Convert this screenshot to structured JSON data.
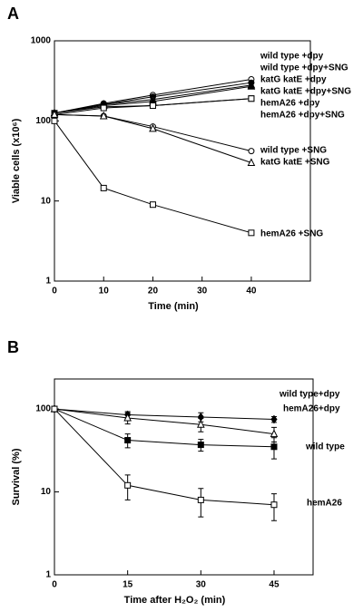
{
  "chart_data": [
    {
      "type": "line",
      "panel": "A",
      "log_y": true,
      "ylabel": "Viable cells (x10⁶)",
      "xlabel": "Time (min)",
      "xlim": [
        0,
        52
      ],
      "xticks": [
        0,
        10,
        20,
        30,
        40
      ],
      "ylim": [
        1,
        1000
      ],
      "yticks": [
        1,
        10,
        100,
        1000
      ],
      "x": [
        0,
        10,
        20,
        40
      ],
      "series": [
        {
          "name": "wild type +dpy",
          "color": "#000000",
          "marker": "circle",
          "filled": false,
          "values": [
            125,
            165,
            210,
            330
          ]
        },
        {
          "name": "wild type +dpy+SNG",
          "color": "#000000",
          "marker": "circle",
          "filled": true,
          "values": [
            125,
            160,
            200,
            300
          ]
        },
        {
          "name": "katG katE +dpy",
          "color": "#000000",
          "marker": "triangle",
          "filled": false,
          "values": [
            125,
            160,
            185,
            280
          ]
        },
        {
          "name": "katG katE +dpy+SNG",
          "color": "#000000",
          "marker": "triangle",
          "filled": true,
          "values": [
            125,
            155,
            175,
            270
          ]
        },
        {
          "name": "hemA26 +dpy",
          "color": "#000000",
          "marker": "square",
          "filled": true,
          "values": [
            125,
            150,
            155,
            190
          ]
        },
        {
          "name": "hemA26 +dpy+SNG",
          "color": "#000000",
          "marker": "square",
          "filled": false,
          "values": [
            120,
            145,
            155,
            190
          ]
        },
        {
          "name": "wild type +SNG",
          "color": "#000000",
          "marker": "circle",
          "filled": false,
          "values": [
            120,
            115,
            85,
            42
          ]
        },
        {
          "name": "katG katE +SNG",
          "color": "#000000",
          "marker": "triangle",
          "filled": false,
          "values": [
            120,
            115,
            80,
            30
          ]
        },
        {
          "name": "hemA26 +SNG",
          "color": "#000000",
          "marker": "square",
          "filled": false,
          "values": [
            100,
            14.5,
            9,
            4
          ]
        }
      ]
    },
    {
      "type": "errorbar",
      "panel": "B",
      "log_y": true,
      "ylabel": "Survival (%)",
      "xlabel": "Time  after H₂O₂ (min)",
      "xlim": [
        0,
        53
      ],
      "xticks": [
        0,
        15,
        30,
        45
      ],
      "ylim": [
        1,
        230
      ],
      "yticks": [
        1,
        10,
        100
      ],
      "x": [
        0,
        15,
        30,
        45
      ],
      "series": [
        {
          "name": "wild type+dpy",
          "color": "#000000",
          "marker": "diamond",
          "filled": true,
          "values": [
            100,
            85,
            80,
            75
          ],
          "errors": [
            0,
            8,
            10,
            6
          ]
        },
        {
          "name": "hemA26+dpy",
          "color": "#000000",
          "marker": "triangle",
          "filled": false,
          "values": [
            100,
            78,
            65,
            50
          ],
          "errors": [
            0,
            12,
            12,
            10
          ]
        },
        {
          "name": "wild type",
          "color": "#000000",
          "marker": "square",
          "filled": true,
          "values": [
            100,
            42,
            37,
            35
          ],
          "errors": [
            0,
            8,
            6,
            10
          ]
        },
        {
          "name": "hemA26",
          "color": "#000000",
          "marker": "square",
          "filled": false,
          "values": [
            100,
            12,
            8,
            7
          ],
          "errors": [
            0,
            4,
            3,
            2.5
          ]
        }
      ]
    }
  ]
}
